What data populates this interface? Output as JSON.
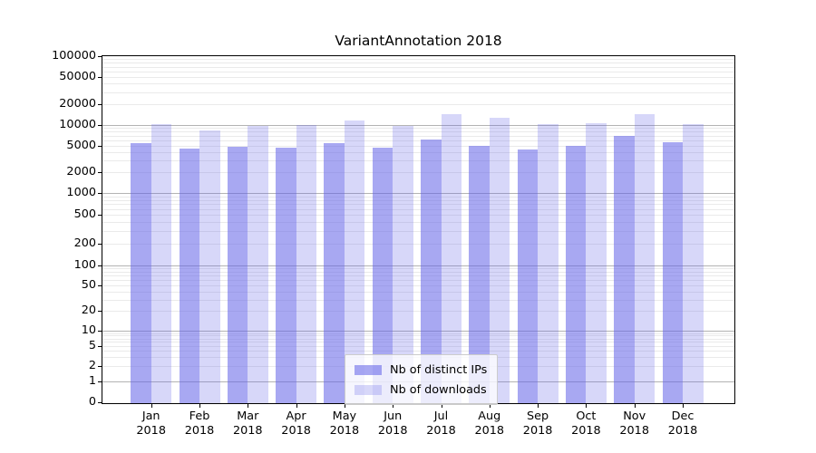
{
  "chart_data": {
    "type": "bar",
    "title": "VariantAnnotation 2018",
    "months": [
      "Jan",
      "Feb",
      "Mar",
      "Apr",
      "May",
      "Jun",
      "Jul",
      "Aug",
      "Sep",
      "Oct",
      "Nov",
      "Dec"
    ],
    "year": "2018",
    "series": [
      {
        "name": "Nb of distinct IPs",
        "color": "rgba(97,97,232,0.55)",
        "values": [
          5400,
          4500,
          4800,
          4600,
          5400,
          4700,
          6100,
          4900,
          4400,
          4900,
          7000,
          5600
        ]
      },
      {
        "name": "Nb of downloads",
        "color": "rgba(97,97,232,0.25)",
        "values": [
          10400,
          8400,
          9700,
          10100,
          11600,
          9800,
          14400,
          12700,
          10400,
          10600,
          14200,
          10400
        ]
      }
    ],
    "yticks": [
      0,
      1,
      2,
      5,
      10,
      20,
      50,
      100,
      200,
      500,
      1000,
      2000,
      5000,
      10000,
      20000,
      50000,
      100000
    ],
    "ylim": [
      0,
      100000
    ],
    "yscale": "symlog",
    "grid": true,
    "legend_position": "lower center",
    "colors": {
      "grid_major": "#b3b3b3",
      "grid_minor": "#eaeaea",
      "spine": "#000000",
      "text": "#000000"
    }
  }
}
